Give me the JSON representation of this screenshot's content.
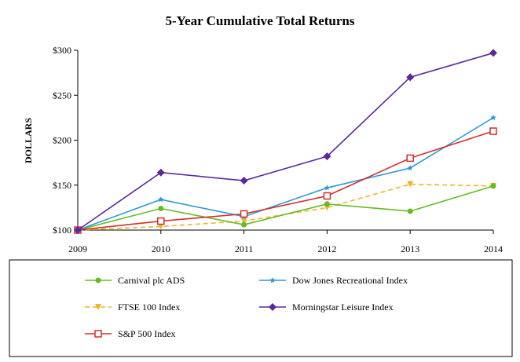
{
  "chart_data": {
    "type": "line",
    "title": "5-Year Cumulative Total Returns",
    "xlabel": "",
    "ylabel": "DOLLARS",
    "x": [
      "2009",
      "2010",
      "2011",
      "2012",
      "2013",
      "2014"
    ],
    "ylim": [
      100,
      300
    ],
    "yticks": [
      100,
      150,
      200,
      250,
      300
    ],
    "ytick_labels": [
      "$100",
      "$150",
      "$200",
      "$250",
      "$300"
    ],
    "grid": false,
    "legend_placement": "bottom",
    "series": [
      {
        "name": "Carnival plc ADS",
        "values": [
          100,
          124,
          106,
          129,
          121,
          149
        ],
        "color": "#66bb22",
        "marker": "circle",
        "dash": "solid"
      },
      {
        "name": "Dow Jones Recreational Index",
        "values": [
          100,
          134,
          115,
          147,
          169,
          225
        ],
        "color": "#2e9ad6",
        "marker": "star",
        "dash": "solid"
      },
      {
        "name": "FTSE 100 Index",
        "values": [
          100,
          104,
          110,
          125,
          151,
          149
        ],
        "color": "#f0b429",
        "marker": "triangle-down",
        "dash": "dashed"
      },
      {
        "name": "Morningstar Leisure Index",
        "values": [
          100,
          164,
          155,
          182,
          270,
          297
        ],
        "color": "#5b2a9a",
        "marker": "diamond",
        "dash": "solid"
      },
      {
        "name": "S&P 500 Index",
        "values": [
          100,
          110,
          118,
          138,
          180,
          210
        ],
        "color": "#d42e2e",
        "marker": "square-open",
        "dash": "solid"
      }
    ]
  }
}
